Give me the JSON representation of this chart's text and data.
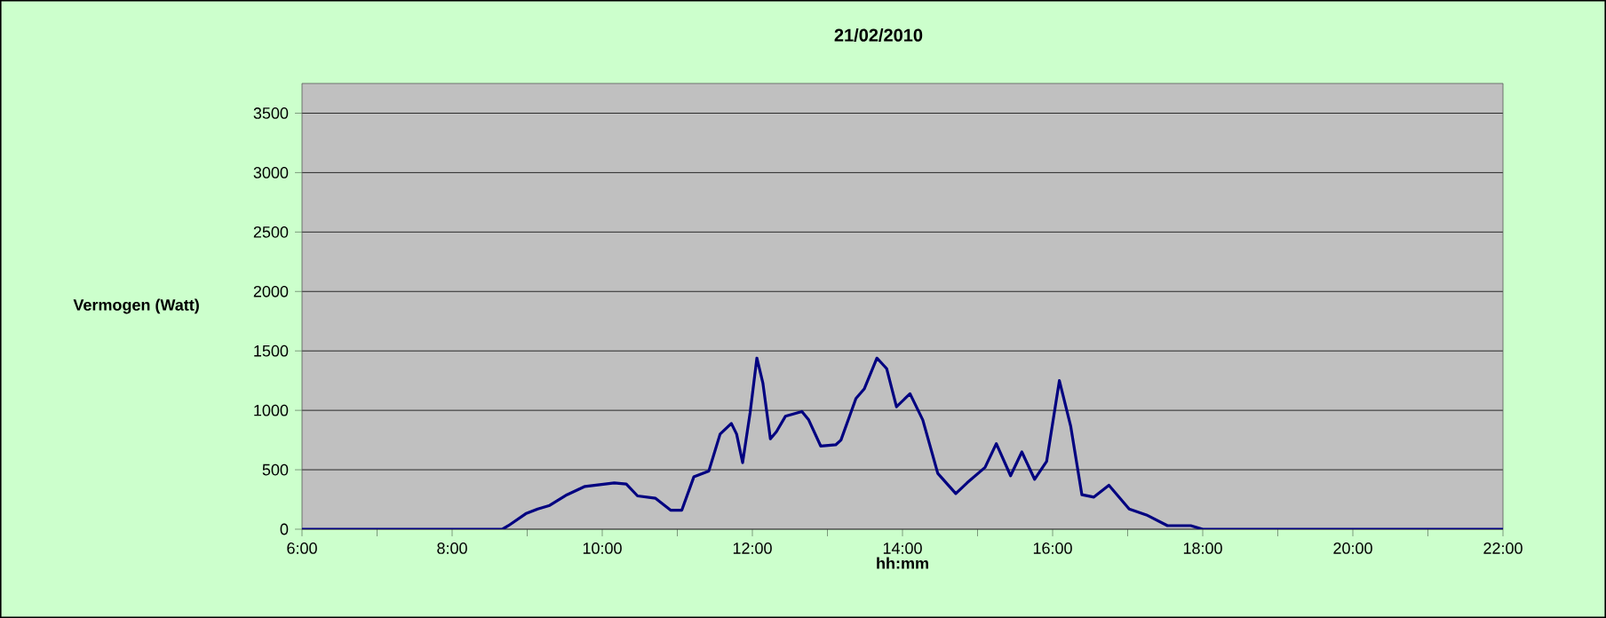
{
  "chart_data": {
    "type": "line",
    "title": "21/02/2010",
    "xlabel": "hh:mm",
    "ylabel": "Vermogen (Watt)",
    "xlim": [
      6,
      22
    ],
    "ylim": [
      0,
      3750
    ],
    "xticks": [
      {
        "value": 6,
        "label": "6:00"
      },
      {
        "value": 7,
        "label": null
      },
      {
        "value": 8,
        "label": "8:00"
      },
      {
        "value": 9,
        "label": null
      },
      {
        "value": 10,
        "label": "10:00"
      },
      {
        "value": 11,
        "label": null
      },
      {
        "value": 12,
        "label": "12:00"
      },
      {
        "value": 13,
        "label": null
      },
      {
        "value": 14,
        "label": "14:00"
      },
      {
        "value": 15,
        "label": null
      },
      {
        "value": 16,
        "label": "16:00"
      },
      {
        "value": 17,
        "label": null
      },
      {
        "value": 18,
        "label": "18:00"
      },
      {
        "value": 19,
        "label": null
      },
      {
        "value": 20,
        "label": "20:00"
      },
      {
        "value": 21,
        "label": null
      },
      {
        "value": 22,
        "label": "22:00"
      }
    ],
    "yticks": [
      0,
      500,
      1000,
      1500,
      2000,
      2500,
      3000,
      3500
    ],
    "grid": "y",
    "marker": "none",
    "line_style": "solid",
    "series": [
      {
        "color": "#000080",
        "x": [
          6,
          7,
          8,
          8.67,
          8.75,
          8.98,
          9.14,
          9.3,
          9.53,
          9.77,
          10.16,
          10.32,
          10.47,
          10.71,
          10.91,
          11.06,
          11.22,
          11.42,
          11.57,
          11.72,
          11.79,
          11.87,
          11.97,
          12.06,
          12.14,
          12.24,
          12.32,
          12.44,
          12.66,
          12.75,
          12.91,
          13.11,
          13.18,
          13.38,
          13.49,
          13.66,
          13.79,
          13.92,
          14.1,
          14.27,
          14.47,
          14.71,
          14.86,
          15.1,
          15.25,
          15.44,
          15.59,
          15.76,
          15.92,
          16.09,
          16.24,
          16.39,
          16.55,
          16.75,
          17.02,
          17.25,
          17.53,
          17.84,
          18,
          19,
          20,
          21,
          22
        ],
        "values": [
          0,
          0,
          0,
          0,
          30,
          130,
          170,
          200,
          290,
          360,
          390,
          380,
          280,
          260,
          160,
          160,
          440,
          490,
          800,
          890,
          800,
          560,
          980,
          1440,
          1230,
          760,
          820,
          950,
          990,
          920,
          700,
          710,
          750,
          1100,
          1180,
          1440,
          1350,
          1030,
          1140,
          920,
          470,
          300,
          390,
          520,
          720,
          450,
          650,
          420,
          570,
          1250,
          870,
          290,
          270,
          370,
          170,
          120,
          30,
          30,
          0,
          0,
          0,
          0,
          0
        ]
      }
    ]
  }
}
